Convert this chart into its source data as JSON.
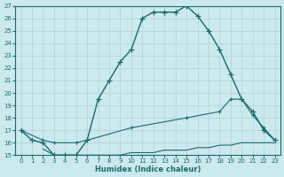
{
  "xlabel": "Humidex (Indice chaleur)",
  "bg_color": "#cce9ed",
  "line_color": "#1a6b6b",
  "grid_color": "#b0d8dc",
  "xlim": [
    -0.5,
    23.5
  ],
  "ylim": [
    15,
    27
  ],
  "xticks": [
    0,
    1,
    2,
    3,
    4,
    5,
    6,
    7,
    8,
    9,
    10,
    11,
    12,
    13,
    14,
    15,
    16,
    17,
    18,
    19,
    20,
    21,
    22,
    23
  ],
  "yticks": [
    15,
    16,
    17,
    18,
    19,
    20,
    21,
    22,
    23,
    24,
    25,
    26,
    27
  ],
  "line1_x": [
    0,
    1,
    2,
    3,
    4,
    5,
    6,
    7,
    8,
    9,
    10,
    11,
    12,
    13,
    14,
    15,
    16,
    17,
    18,
    19,
    20,
    21,
    22,
    23
  ],
  "line1_y": [
    17,
    16.2,
    16,
    15.0,
    15.0,
    15.0,
    16.2,
    19.5,
    21.0,
    22.5,
    23.5,
    26.0,
    26.5,
    26.5,
    26.5,
    27.0,
    26.2,
    25.0,
    23.5,
    21.5,
    19.5,
    18.5,
    17.0,
    16.2
  ],
  "line2_x": [
    0,
    2,
    3,
    5,
    6,
    10,
    15,
    18,
    19,
    20,
    21,
    22,
    23
  ],
  "line2_y": [
    17,
    16.2,
    16.0,
    16.0,
    16.2,
    17.2,
    18.0,
    18.5,
    19.5,
    19.5,
    18.2,
    17.2,
    16.2
  ],
  "line3_x": [
    2,
    3,
    4,
    5,
    6,
    7,
    8,
    9,
    10,
    11,
    12,
    13,
    14,
    15,
    16,
    17,
    18,
    19,
    20,
    21,
    22,
    23
  ],
  "line3_y": [
    15.5,
    15.0,
    15.0,
    15.0,
    15.0,
    15.0,
    15.0,
    15.0,
    15.2,
    15.2,
    15.2,
    15.4,
    15.4,
    15.4,
    15.6,
    15.6,
    15.8,
    15.8,
    16.0,
    16.0,
    16.0,
    16.0
  ]
}
